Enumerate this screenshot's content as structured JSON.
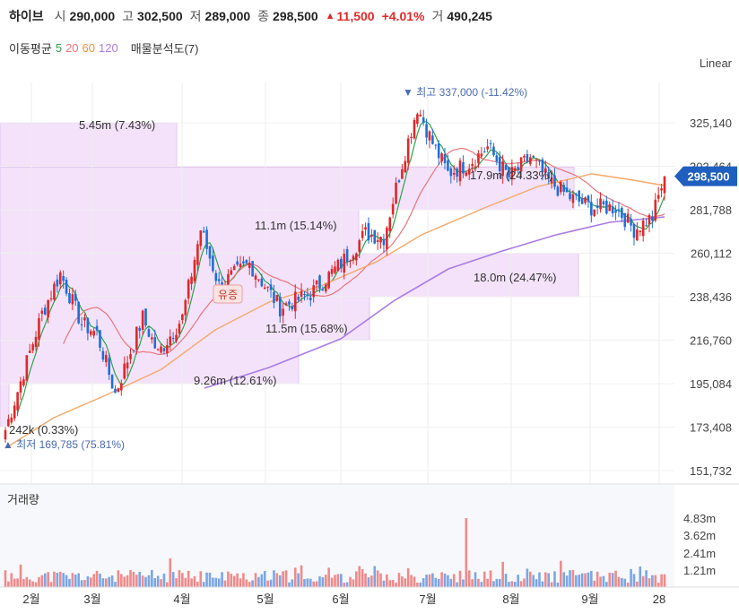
{
  "header": {
    "stock_name": "하이브",
    "open_label": "시",
    "open": "290,000",
    "high_label": "고",
    "high": "302,500",
    "low_label": "저",
    "low": "289,000",
    "close_label": "종",
    "close": "298,500",
    "change": "11,500",
    "change_pct": "+4.01%",
    "volume_label": "거",
    "volume": "490,245"
  },
  "indicators": {
    "ma_label": "이동평균",
    "ma5": "5",
    "ma20": "20",
    "ma60": "60",
    "ma120": "120",
    "profile_label": "매물분석도(7)"
  },
  "scale_label": "Linear",
  "colors": {
    "up": "#e0282a",
    "down": "#1f6fd8",
    "ma5": "#2fa24a",
    "ma20": "#e8757a",
    "ma60": "#f5a869",
    "ma120": "#a97be6",
    "profile": "#f3e2fa",
    "price_tag": "#1f5fbf"
  },
  "chart_data": {
    "type": "candlestick",
    "price_axis": [
      "325,140",
      "303,464",
      "281,788",
      "260,112",
      "238,436",
      "216,760",
      "195,084",
      "173,408",
      "151,732"
    ],
    "current_price_tag": "298,500",
    "high_marker": "최고 337,000 (-11.42%)",
    "low_marker": "최저 169,785 (75.81%)",
    "event_marker": "유증",
    "volume_profile": [
      {
        "label": "5.45m (7.43%)",
        "price_low": 303000,
        "price_high": 325000
      },
      {
        "label": "17.9m (24.33%)",
        "price_low": 281800,
        "price_high": 303000
      },
      {
        "label": "11.1m (15.14%)",
        "price_low": 260100,
        "price_high": 281800
      },
      {
        "label": "18.0m (24.47%)",
        "price_low": 238400,
        "price_high": 260100
      },
      {
        "label": "11.5m (15.68%)",
        "price_low": 216800,
        "price_high": 238400
      },
      {
        "label": "9.26m (12.61%)",
        "price_low": 195100,
        "price_high": 216800
      },
      {
        "label": "242k (0.33%)",
        "price_low": 173400,
        "price_high": 195100
      }
    ],
    "volume_title": "거래량",
    "volume_axis": [
      "4.83m",
      "3.62m",
      "2.41m",
      "1.21m"
    ],
    "x_labels": [
      "2월",
      "3월",
      "4월",
      "5월",
      "6월",
      "7월",
      "8월",
      "9월",
      "28"
    ]
  }
}
